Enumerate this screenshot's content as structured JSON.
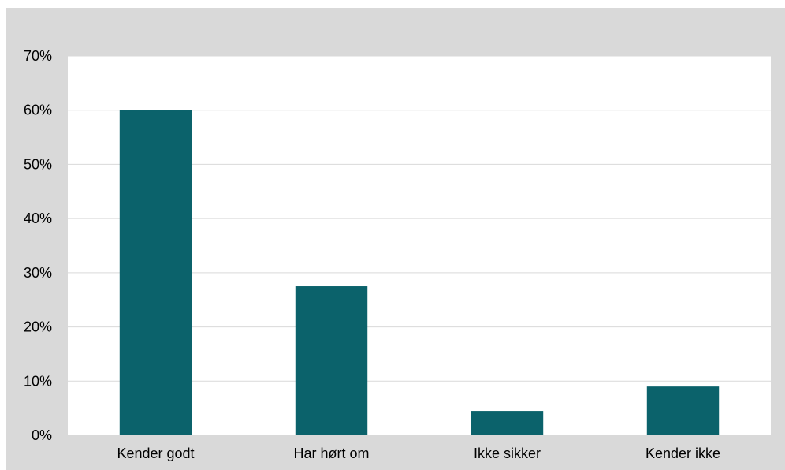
{
  "chart_data": {
    "type": "bar",
    "title": "",
    "xlabel": "",
    "ylabel": "",
    "categories": [
      "Kender godt",
      "Har hørt om",
      "Ikke sikker",
      "Kender ikke"
    ],
    "values": [
      0.6,
      0.275,
      0.045,
      0.09
    ],
    "ylim": [
      0,
      0.7
    ],
    "yticks": [
      0,
      0.1,
      0.2,
      0.3,
      0.4,
      0.5,
      0.6,
      0.7
    ],
    "ytick_labels": [
      "0%",
      "10%",
      "20%",
      "30%",
      "40%",
      "50%",
      "60%",
      "70%"
    ],
    "grid": true,
    "legend": "none",
    "colors": {
      "bar": "#0b626b",
      "background": "#d9d9d9",
      "plot_area": "#ffffff",
      "gridline": "#d9d9d9"
    }
  }
}
